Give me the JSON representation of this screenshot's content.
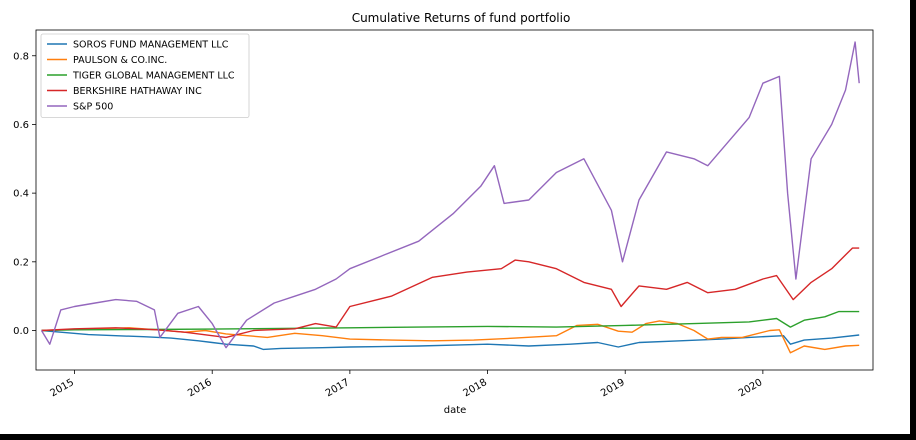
{
  "chart_data": {
    "type": "line",
    "title": "Cumulative Returns of fund portfolio",
    "xlabel": "date",
    "ylabel": "",
    "xlim": [
      2014.72,
      2020.8
    ],
    "ylim": [
      -0.115,
      0.875
    ],
    "xticks": [
      {
        "value": 2015.0,
        "label": "2015"
      },
      {
        "value": 2016.0,
        "label": "2016"
      },
      {
        "value": 2017.0,
        "label": "2017"
      },
      {
        "value": 2018.0,
        "label": "2018"
      },
      {
        "value": 2019.0,
        "label": "2019"
      },
      {
        "value": 2020.0,
        "label": "2020"
      }
    ],
    "yticks": [
      {
        "value": 0.0,
        "label": "0.0"
      },
      {
        "value": 0.2,
        "label": "0.2"
      },
      {
        "value": 0.4,
        "label": "0.4"
      },
      {
        "value": 0.6,
        "label": "0.6"
      },
      {
        "value": 0.8,
        "label": "0.8"
      }
    ],
    "grid": false,
    "legend_position": "top-left",
    "series": [
      {
        "name": "SOROS FUND MANAGEMENT LLC",
        "color": "#1f77b4",
        "points": [
          [
            2014.76,
            0.0
          ],
          [
            2014.9,
            -0.005
          ],
          [
            2015.1,
            -0.012
          ],
          [
            2015.3,
            -0.015
          ],
          [
            2015.5,
            -0.018
          ],
          [
            2015.7,
            -0.022
          ],
          [
            2015.9,
            -0.03
          ],
          [
            2016.0,
            -0.035
          ],
          [
            2016.1,
            -0.04
          ],
          [
            2016.3,
            -0.045
          ],
          [
            2016.37,
            -0.055
          ],
          [
            2016.5,
            -0.052
          ],
          [
            2016.8,
            -0.05
          ],
          [
            2017.0,
            -0.048
          ],
          [
            2017.5,
            -0.045
          ],
          [
            2017.8,
            -0.042
          ],
          [
            2018.0,
            -0.04
          ],
          [
            2018.3,
            -0.045
          ],
          [
            2018.6,
            -0.04
          ],
          [
            2018.8,
            -0.035
          ],
          [
            2018.95,
            -0.048
          ],
          [
            2019.1,
            -0.035
          ],
          [
            2019.4,
            -0.03
          ],
          [
            2019.7,
            -0.025
          ],
          [
            2019.9,
            -0.02
          ],
          [
            2020.15,
            -0.015
          ],
          [
            2020.2,
            -0.04
          ],
          [
            2020.3,
            -0.028
          ],
          [
            2020.5,
            -0.022
          ],
          [
            2020.7,
            -0.013
          ]
        ]
      },
      {
        "name": "PAULSON & CO.INC.",
        "color": "#ff7f0e",
        "points": [
          [
            2014.76,
            0.0
          ],
          [
            2014.9,
            0.002
          ],
          [
            2015.1,
            0.005
          ],
          [
            2015.4,
            0.008
          ],
          [
            2015.6,
            0.002
          ],
          [
            2015.8,
            -0.005
          ],
          [
            2015.95,
            0.0
          ],
          [
            2016.1,
            -0.01
          ],
          [
            2016.4,
            -0.02
          ],
          [
            2016.6,
            -0.008
          ],
          [
            2016.8,
            -0.015
          ],
          [
            2017.0,
            -0.025
          ],
          [
            2017.3,
            -0.028
          ],
          [
            2017.6,
            -0.03
          ],
          [
            2017.9,
            -0.028
          ],
          [
            2018.2,
            -0.022
          ],
          [
            2018.5,
            -0.015
          ],
          [
            2018.65,
            0.015
          ],
          [
            2018.8,
            0.018
          ],
          [
            2018.95,
            -0.002
          ],
          [
            2019.05,
            -0.005
          ],
          [
            2019.15,
            0.02
          ],
          [
            2019.25,
            0.028
          ],
          [
            2019.38,
            0.02
          ],
          [
            2019.5,
            0.0
          ],
          [
            2019.6,
            -0.025
          ],
          [
            2019.7,
            -0.02
          ],
          [
            2019.85,
            -0.02
          ],
          [
            2020.05,
            0.0
          ],
          [
            2020.12,
            0.002
          ],
          [
            2020.2,
            -0.065
          ],
          [
            2020.3,
            -0.045
          ],
          [
            2020.45,
            -0.055
          ],
          [
            2020.6,
            -0.045
          ],
          [
            2020.7,
            -0.043
          ]
        ]
      },
      {
        "name": "TIGER GLOBAL MANAGEMENT LLC",
        "color": "#2ca02c",
        "points": [
          [
            2014.76,
            0.0
          ],
          [
            2015.0,
            0.002
          ],
          [
            2015.5,
            0.003
          ],
          [
            2016.0,
            0.004
          ],
          [
            2016.5,
            0.006
          ],
          [
            2017.0,
            0.008
          ],
          [
            2017.5,
            0.01
          ],
          [
            2018.0,
            0.012
          ],
          [
            2018.5,
            0.01
          ],
          [
            2019.0,
            0.015
          ],
          [
            2019.5,
            0.02
          ],
          [
            2019.9,
            0.025
          ],
          [
            2020.1,
            0.035
          ],
          [
            2020.2,
            0.01
          ],
          [
            2020.3,
            0.03
          ],
          [
            2020.45,
            0.04
          ],
          [
            2020.55,
            0.055
          ],
          [
            2020.7,
            0.055
          ]
        ]
      },
      {
        "name": "BERKSHIRE HATHAWAY INC",
        "color": "#d62728",
        "points": [
          [
            2014.76,
            0.0
          ],
          [
            2015.0,
            0.005
          ],
          [
            2015.3,
            0.008
          ],
          [
            2015.6,
            0.002
          ],
          [
            2015.8,
            -0.005
          ],
          [
            2016.1,
            -0.02
          ],
          [
            2016.3,
            0.0
          ],
          [
            2016.6,
            0.005
          ],
          [
            2016.75,
            0.02
          ],
          [
            2016.9,
            0.01
          ],
          [
            2017.0,
            0.07
          ],
          [
            2017.3,
            0.1
          ],
          [
            2017.6,
            0.155
          ],
          [
            2017.85,
            0.17
          ],
          [
            2018.1,
            0.18
          ],
          [
            2018.2,
            0.205
          ],
          [
            2018.3,
            0.2
          ],
          [
            2018.5,
            0.18
          ],
          [
            2018.7,
            0.14
          ],
          [
            2018.9,
            0.12
          ],
          [
            2018.97,
            0.07
          ],
          [
            2019.1,
            0.13
          ],
          [
            2019.3,
            0.12
          ],
          [
            2019.45,
            0.14
          ],
          [
            2019.6,
            0.11
          ],
          [
            2019.8,
            0.12
          ],
          [
            2020.0,
            0.15
          ],
          [
            2020.1,
            0.16
          ],
          [
            2020.22,
            0.09
          ],
          [
            2020.35,
            0.14
          ],
          [
            2020.5,
            0.18
          ],
          [
            2020.65,
            0.24
          ],
          [
            2020.7,
            0.24
          ]
        ]
      },
      {
        "name": "S&P 500",
        "color": "#9467bd",
        "points": [
          [
            2014.76,
            0.0
          ],
          [
            2014.82,
            -0.04
          ],
          [
            2014.9,
            0.06
          ],
          [
            2015.0,
            0.07
          ],
          [
            2015.15,
            0.08
          ],
          [
            2015.3,
            0.09
          ],
          [
            2015.45,
            0.085
          ],
          [
            2015.58,
            0.06
          ],
          [
            2015.62,
            -0.02
          ],
          [
            2015.75,
            0.05
          ],
          [
            2015.9,
            0.07
          ],
          [
            2016.0,
            0.02
          ],
          [
            2016.1,
            -0.05
          ],
          [
            2016.25,
            0.03
          ],
          [
            2016.45,
            0.08
          ],
          [
            2016.6,
            0.1
          ],
          [
            2016.75,
            0.12
          ],
          [
            2016.9,
            0.15
          ],
          [
            2017.0,
            0.18
          ],
          [
            2017.25,
            0.22
          ],
          [
            2017.5,
            0.26
          ],
          [
            2017.75,
            0.34
          ],
          [
            2017.95,
            0.42
          ],
          [
            2018.05,
            0.48
          ],
          [
            2018.12,
            0.37
          ],
          [
            2018.3,
            0.38
          ],
          [
            2018.5,
            0.46
          ],
          [
            2018.7,
            0.5
          ],
          [
            2018.9,
            0.35
          ],
          [
            2018.98,
            0.2
          ],
          [
            2019.1,
            0.38
          ],
          [
            2019.3,
            0.52
          ],
          [
            2019.5,
            0.5
          ],
          [
            2019.6,
            0.48
          ],
          [
            2019.75,
            0.55
          ],
          [
            2019.9,
            0.62
          ],
          [
            2020.0,
            0.72
          ],
          [
            2020.12,
            0.74
          ],
          [
            2020.18,
            0.4
          ],
          [
            2020.24,
            0.15
          ],
          [
            2020.35,
            0.5
          ],
          [
            2020.5,
            0.6
          ],
          [
            2020.6,
            0.7
          ],
          [
            2020.67,
            0.84
          ],
          [
            2020.7,
            0.72
          ]
        ]
      }
    ]
  }
}
